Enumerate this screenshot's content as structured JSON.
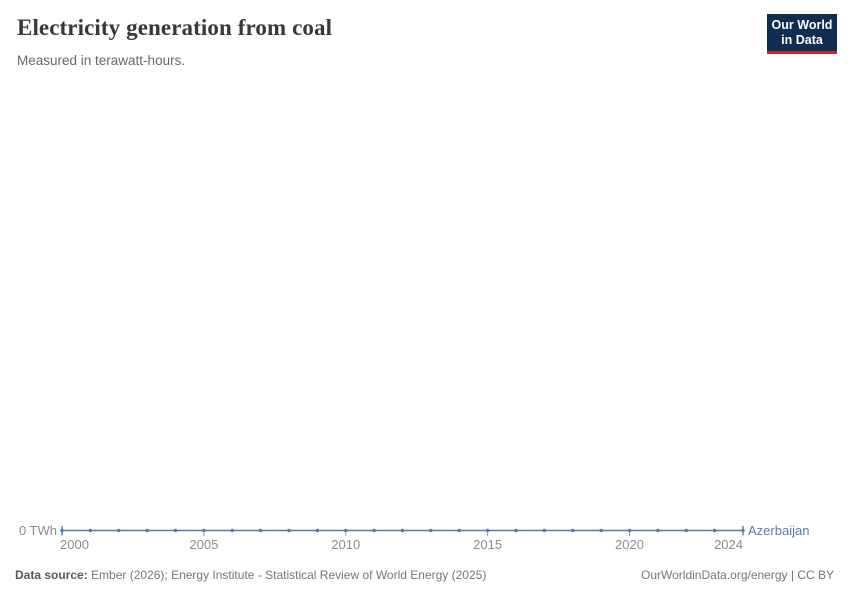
{
  "header": {
    "title": "Electricity generation from coal",
    "subtitle": "Measured in terawatt-hours."
  },
  "logo": {
    "line1": "Our World",
    "line2": "in Data",
    "background_color": "#0e2d51",
    "stripe_color": "#d6242c"
  },
  "chart_data": {
    "type": "line",
    "title": "Electricity generation from coal",
    "subtitle": "Measured in terawatt-hours.",
    "unit": "TWh",
    "entity": "Azerbaijan",
    "y_axis_label": "0 TWh",
    "x_min": 2000,
    "x_max": 2024,
    "x_tick_labels": [
      2000,
      2005,
      2010,
      2015,
      2020,
      2024
    ],
    "ylim": [
      0,
      0
    ],
    "grid": false,
    "legend_position": "end-of-line",
    "series": [
      {
        "name": "Azerbaijan",
        "x": [
          2000,
          2001,
          2002,
          2003,
          2004,
          2005,
          2006,
          2007,
          2008,
          2009,
          2010,
          2011,
          2012,
          2013,
          2014,
          2015,
          2016,
          2017,
          2018,
          2019,
          2020,
          2021,
          2022,
          2023,
          2024
        ],
        "values": [
          0,
          0,
          0,
          0,
          0,
          0,
          0,
          0,
          0,
          0,
          0,
          0,
          0,
          0,
          0,
          0,
          0,
          0,
          0,
          0,
          0,
          0,
          0,
          0,
          0
        ]
      }
    ],
    "colors": {
      "line": "#5878b4",
      "axis_text": "#8c8c8c",
      "tick_mark": "#9a9a9a"
    }
  },
  "footer": {
    "source_label": "Data source:",
    "source_text": " Ember (2026); Energy Institute - Statistical Review of World Energy (2025)",
    "rights": "OurWorldinData.org/energy | CC BY"
  }
}
